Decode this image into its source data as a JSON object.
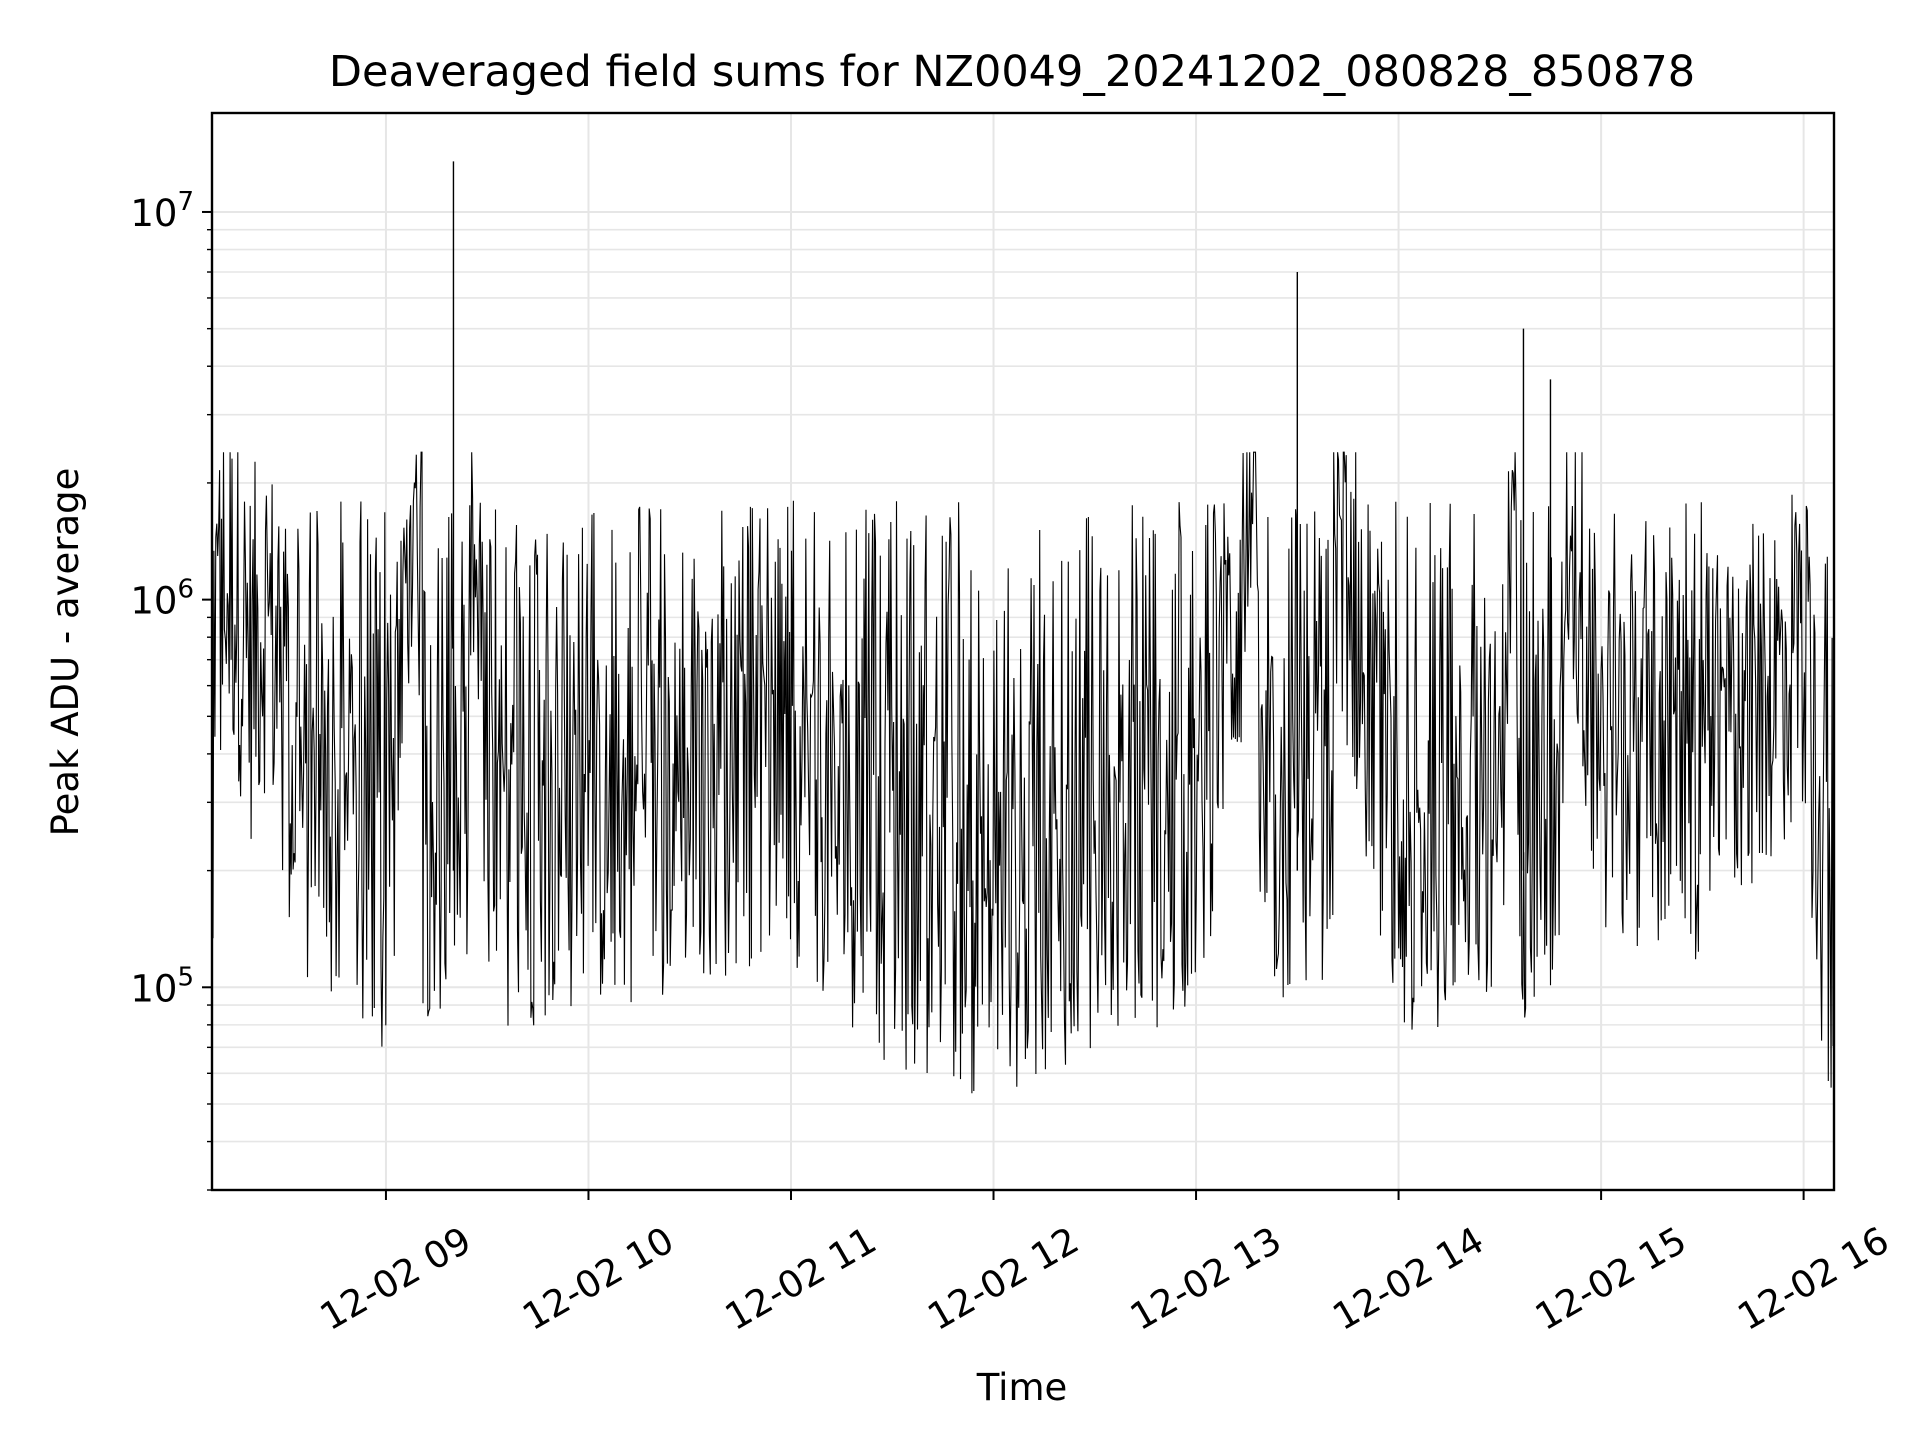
{
  "chart_data": {
    "type": "line",
    "title": "Deaveraged field sums for NZ0049_20241202_080828_850878",
    "xlabel": "Time",
    "ylabel": "Peak ADU - average",
    "y_scale": "log",
    "ylim": [
      30000,
      18000000
    ],
    "xlim": [
      "2024-12-02 08:08:28",
      "2024-12-02 16:09:00"
    ],
    "x_ticks": [
      {
        "value": "2024-12-02 09:00",
        "label": "12-02 09"
      },
      {
        "value": "2024-12-02 10:00",
        "label": "12-02 10"
      },
      {
        "value": "2024-12-02 11:00",
        "label": "12-02 11"
      },
      {
        "value": "2024-12-02 12:00",
        "label": "12-02 12"
      },
      {
        "value": "2024-12-02 13:00",
        "label": "12-02 13"
      },
      {
        "value": "2024-12-02 14:00",
        "label": "12-02 14"
      },
      {
        "value": "2024-12-02 15:00",
        "label": "12-02 15"
      },
      {
        "value": "2024-12-02 16:00",
        "label": "12-02 16"
      }
    ],
    "y_ticks": [
      {
        "value": 100000,
        "base": "10",
        "exp": "5"
      },
      {
        "value": 1000000,
        "base": "10",
        "exp": "6"
      },
      {
        "value": 10000000,
        "base": "10",
        "exp": "7"
      }
    ],
    "grid": true,
    "line_color": "#000000",
    "series": [
      {
        "values_approx": [
          {
            "x": "2024-12-02 08:09",
            "y": 900000
          },
          {
            "x": "2024-12-02 08:15",
            "y": 1100000
          },
          {
            "x": "2024-12-02 08:20",
            "y": 700000
          },
          {
            "x": "2024-12-02 08:25",
            "y": 1000000
          },
          {
            "x": "2024-12-02 08:30",
            "y": 400000
          },
          {
            "x": "2024-12-02 08:35",
            "y": 300000
          },
          {
            "x": "2024-12-02 08:45",
            "y": 250000
          },
          {
            "x": "2024-12-02 09:00",
            "y": 200000
          },
          {
            "x": "2024-12-02 09:20",
            "y": 13500000
          },
          {
            "x": "2024-12-02 09:30",
            "y": 220000
          },
          {
            "x": "2024-12-02 10:00",
            "y": 250000
          },
          {
            "x": "2024-12-02 10:30",
            "y": 300000
          },
          {
            "x": "2024-12-02 11:00",
            "y": 350000
          },
          {
            "x": "2024-12-02 11:30",
            "y": 180000
          },
          {
            "x": "2024-12-02 12:00",
            "y": 150000
          },
          {
            "x": "2024-12-02 12:30",
            "y": 200000
          },
          {
            "x": "2024-12-02 13:00",
            "y": 250000
          },
          {
            "x": "2024-12-02 13:30",
            "y": 7000000
          },
          {
            "x": "2024-12-02 14:00",
            "y": 200000
          },
          {
            "x": "2024-12-02 14:30",
            "y": 300000
          },
          {
            "x": "2024-12-02 14:37",
            "y": 5000000
          },
          {
            "x": "2024-12-02 14:45",
            "y": 3700000
          },
          {
            "x": "2024-12-02 15:00",
            "y": 400000
          },
          {
            "x": "2024-12-02 15:30",
            "y": 350000
          },
          {
            "x": "2024-12-02 16:00",
            "y": 800000
          },
          {
            "x": "2024-12-02 16:08",
            "y": 100000
          }
        ]
      }
    ]
  }
}
